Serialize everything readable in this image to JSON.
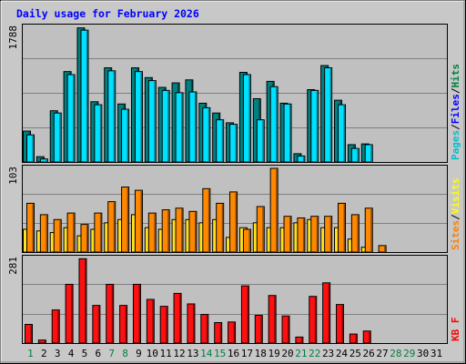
{
  "chart_data": {
    "type": "bar",
    "title": "Daily usage for February 2026",
    "categories": [
      "1",
      "2",
      "3",
      "4",
      "5",
      "6",
      "7",
      "8",
      "9",
      "10",
      "11",
      "12",
      "13",
      "14",
      "15",
      "16",
      "17",
      "18",
      "19",
      "20",
      "21",
      "22",
      "23",
      "24",
      "25",
      "26",
      "27",
      "28",
      "29",
      "30",
      "31"
    ],
    "weekend_days": [
      "1",
      "7",
      "8",
      "14",
      "15",
      "21",
      "22",
      "28",
      "29"
    ],
    "panels": [
      {
        "id": "hits-files-pages",
        "max_label": "1788",
        "ylim": [
          0,
          1788
        ],
        "legend": [
          "Pages",
          "/",
          "Files",
          "/",
          "Hits"
        ],
        "legend_colors": [
          "#00c0d0",
          "#000000",
          "#0000ff",
          "#000000",
          "#008040"
        ],
        "series": [
          {
            "name": "Hits",
            "color": "#008080",
            "values": [
              410,
              70,
              680,
              1200,
              1780,
              800,
              1250,
              770,
              1250,
              1120,
              990,
              1050,
              1090,
              780,
              650,
              520,
              1190,
              840,
              1070,
              780,
              110,
              960,
              1280,
              820,
              230,
              240,
              null,
              null,
              null,
              null,
              null
            ]
          },
          {
            "name": "Files",
            "color": "#00e0ff",
            "values": [
              360,
              40,
              650,
              1160,
              1750,
              760,
              1210,
              700,
              1200,
              1080,
              950,
              920,
              930,
              720,
              560,
              500,
              1160,
              560,
              1000,
              770,
              80,
              950,
              1250,
              760,
              180,
              230,
              null,
              null,
              null,
              null,
              null
            ]
          }
        ]
      },
      {
        "id": "sites-visits",
        "max_label": "103",
        "ylim": [
          0,
          103
        ],
        "legend": [
          "Sites",
          "/",
          "Visits"
        ],
        "legend_colors": [
          "#ff8000",
          "#000000",
          "#ffff00"
        ],
        "series": [
          {
            "name": "Visits",
            "color": "#ffe020",
            "values": [
              28,
              26,
              24,
              30,
              20,
              28,
              36,
              40,
              46,
              30,
              28,
              40,
              40,
              36,
              40,
              18,
              30,
              36,
              30,
              30,
              36,
              40,
              30,
              30,
              16,
              6,
              null,
              null,
              null,
              null,
              null
            ]
          },
          {
            "name": "Sites",
            "color": "#ff8800",
            "values": [
              60,
              46,
              40,
              48,
              34,
              48,
              62,
              80,
              76,
              48,
              52,
              54,
              50,
              78,
              60,
              74,
              28,
              56,
              103,
              44,
              42,
              44,
              44,
              60,
              46,
              54,
              8,
              null,
              null,
              null,
              null
            ]
          }
        ]
      },
      {
        "id": "kbf",
        "max_label": "281",
        "ylim": [
          0,
          281
        ],
        "legend": [
          "KB",
          " ",
          "F"
        ],
        "legend_colors": [
          "#ff0000",
          "#000000",
          "#ff0000"
        ],
        "series": [
          {
            "name": "KB F",
            "color": "#ff1010",
            "values": [
              62,
              10,
              110,
              195,
              280,
              125,
              195,
              125,
              195,
              145,
              122,
              165,
              130,
              95,
              68,
              70,
              190,
              92,
              158,
              90,
              20,
              155,
              200,
              128,
              30,
              40,
              null,
              null,
              null,
              null,
              null
            ]
          }
        ]
      }
    ]
  }
}
